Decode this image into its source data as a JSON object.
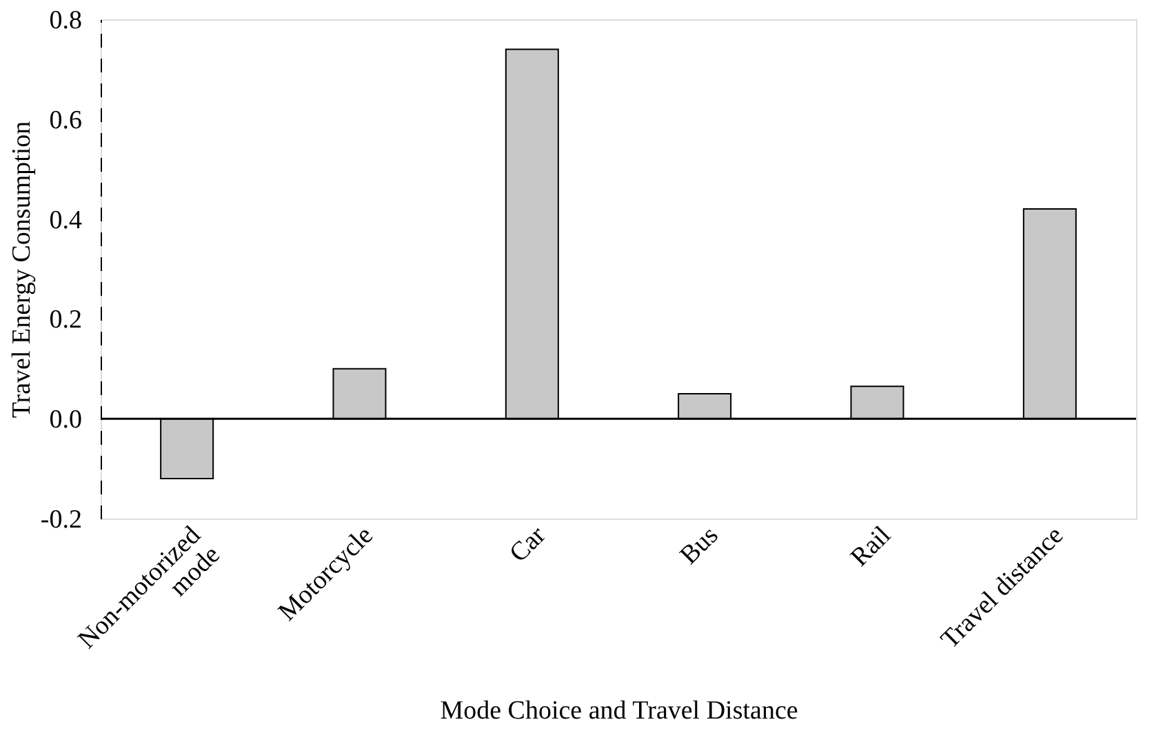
{
  "chart_data": {
    "type": "bar",
    "xlabel": "Mode Choice and Travel Distance",
    "ylabel": "Travel Energy Consumption",
    "categories": [
      "Non-motorized mode",
      "Motorcycle",
      "Car",
      "Bus",
      "Rail",
      "Travel distance"
    ],
    "values": [
      -0.12,
      0.1,
      0.74,
      0.05,
      0.065,
      0.42
    ],
    "color": "#c8c8c8",
    "ylim": [
      -0.2,
      0.8
    ],
    "yticks": [
      {
        "value": -0.2,
        "label": "-0.2"
      },
      {
        "value": 0.0,
        "label": "0.0"
      },
      {
        "value": 0.2,
        "label": "0.2"
      },
      {
        "value": 0.4,
        "label": "0.4"
      },
      {
        "value": 0.6,
        "label": "0.6"
      },
      {
        "value": 0.8,
        "label": "0.8"
      }
    ],
    "ref_lines": [
      {
        "axis": "y",
        "value": 0
      }
    ],
    "grid": false
  }
}
